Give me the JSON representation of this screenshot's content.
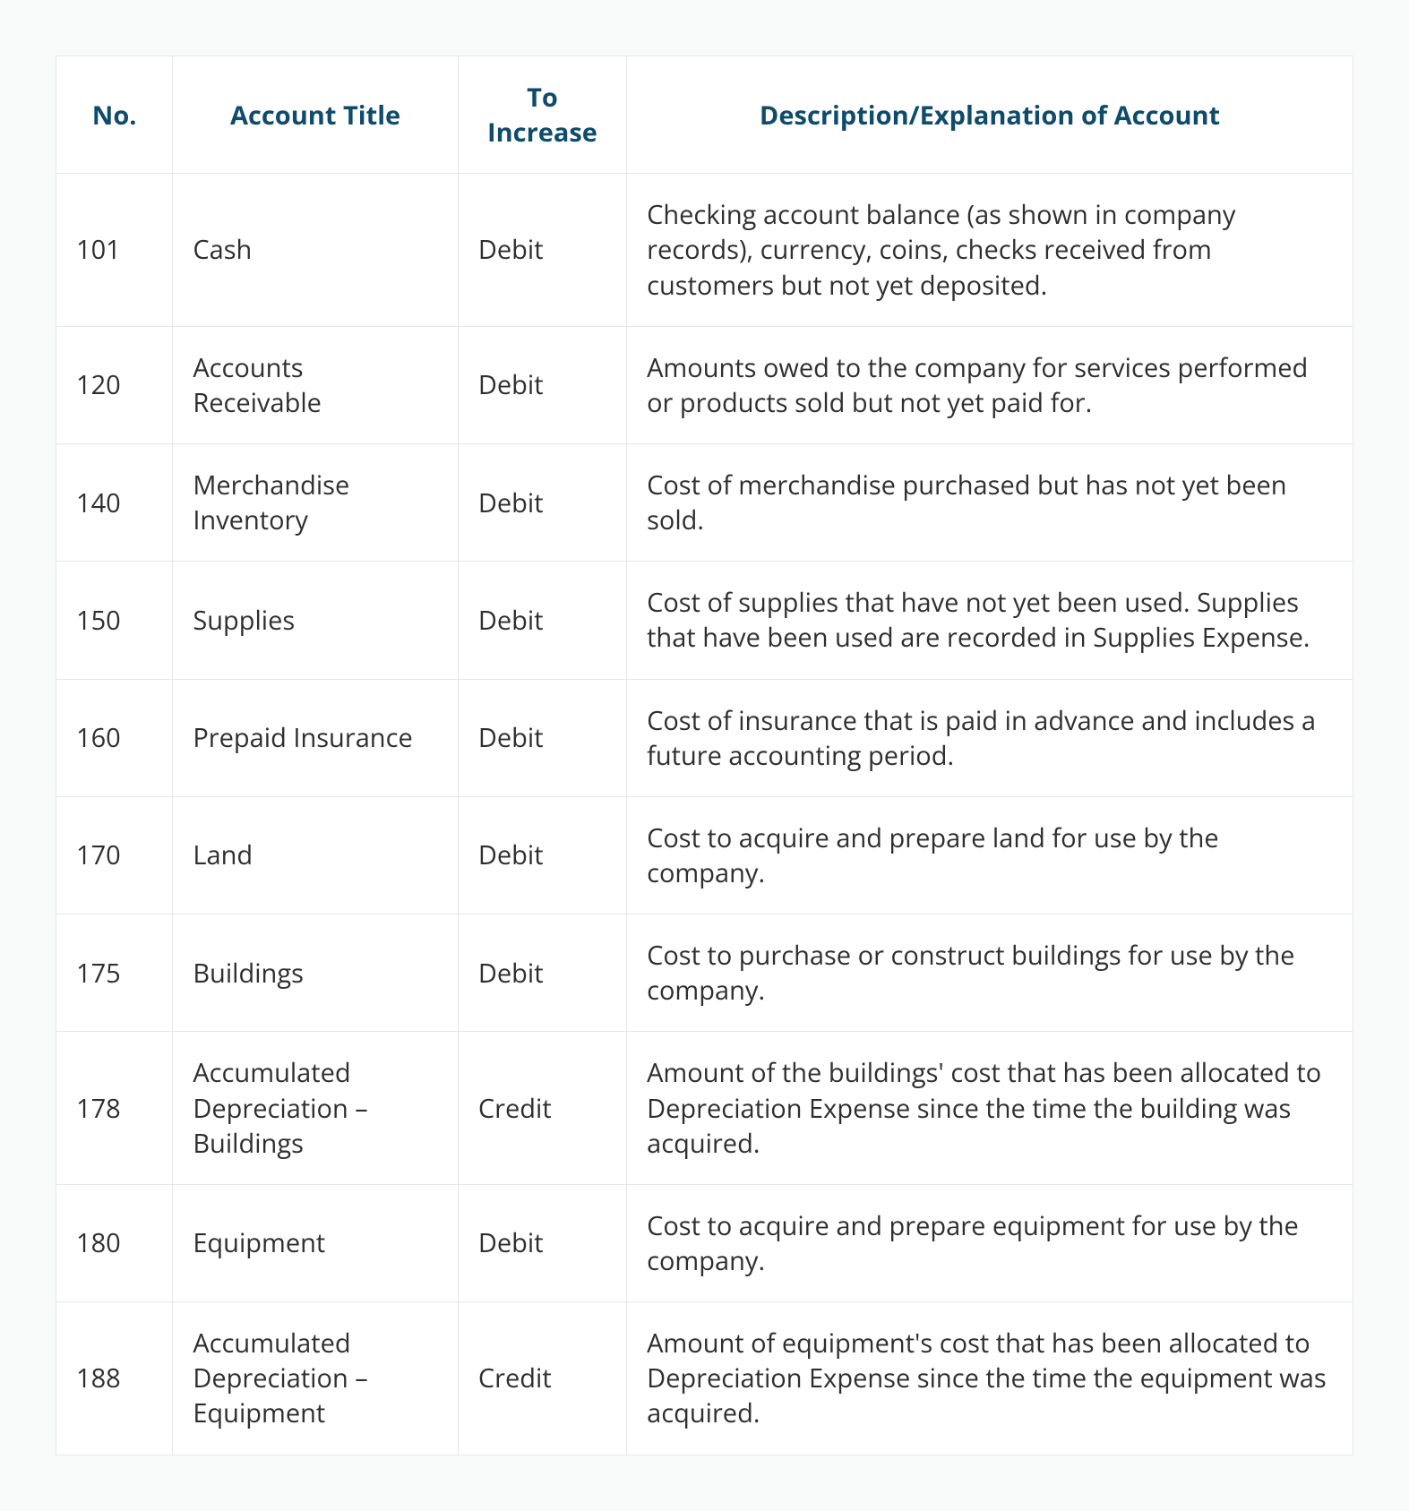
{
  "table": {
    "header_color": "#0f4c6b",
    "text_color": "#2f2f2f",
    "border_color": "#e4e6e8",
    "background_color": "#ffffff",
    "page_background": "#f9fafa",
    "header_fontsize": 29,
    "cell_fontsize": 29,
    "column_widths_pct": [
      9,
      22,
      13,
      56
    ],
    "columns": [
      "No.",
      "Account Title",
      "To Increase",
      "Description/Explanation of Account"
    ],
    "rows": [
      {
        "no": "101",
        "title": "Cash",
        "to_increase": "Debit",
        "description": "Checking account balance (as shown in company records), currency, coins, checks received from customers but not yet deposited."
      },
      {
        "no": "120",
        "title": "Accounts Receivable",
        "to_increase": "Debit",
        "description": "Amounts owed to the company for services performed or products sold but not yet paid for."
      },
      {
        "no": "140",
        "title": "Merchandise Inventory",
        "to_increase": "Debit",
        "description": "Cost of merchandise purchased but has not yet been sold."
      },
      {
        "no": "150",
        "title": "Supplies",
        "to_increase": "Debit",
        "description": "Cost of supplies that have not yet been used. Supplies that have been used are recorded in Supplies Expense."
      },
      {
        "no": "160",
        "title": "Prepaid Insurance",
        "to_increase": "Debit",
        "description": "Cost of insurance that is paid in advance and includes a future accounting period."
      },
      {
        "no": "170",
        "title": "Land",
        "to_increase": "Debit",
        "description": "Cost to acquire and prepare land for use by the company."
      },
      {
        "no": "175",
        "title": "Buildings",
        "to_increase": "Debit",
        "description": "Cost to purchase or construct buildings for use by the company."
      },
      {
        "no": "178",
        "title": "Accumulated Depreciation – Buildings",
        "to_increase": "Credit",
        "description": "Amount of the buildings' cost that has been allocated to Depreciation Expense since the time the building was acquired."
      },
      {
        "no": "180",
        "title": "Equipment",
        "to_increase": "Debit",
        "description": "Cost to acquire and prepare equipment for use by the company."
      },
      {
        "no": "188",
        "title": "Accumulated Depreciation – Equipment",
        "to_increase": "Credit",
        "description": "Amount of equipment's cost that has been allocated to Depreciation Expense since the time the equipment was acquired."
      }
    ]
  }
}
